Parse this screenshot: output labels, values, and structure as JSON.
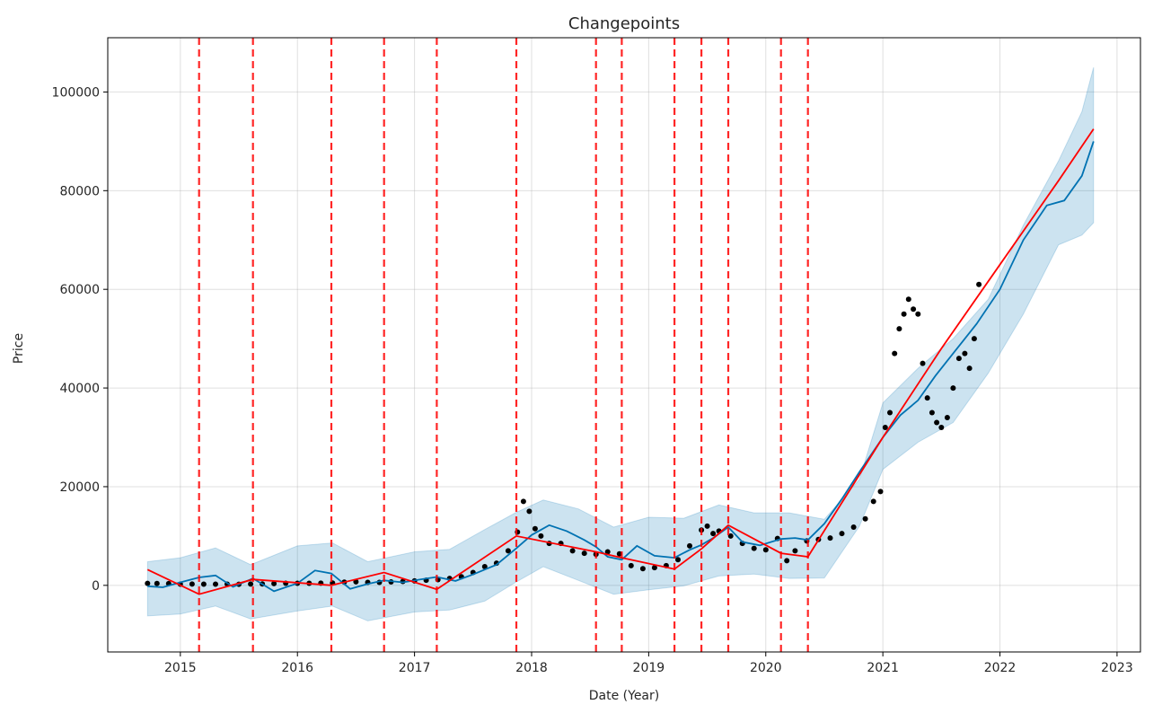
{
  "chart_data": {
    "type": "line",
    "title": "Changepoints",
    "xlabel": "Date (Year)",
    "ylabel": "Price",
    "xlim": [
      2014.38,
      2023.2
    ],
    "ylim": [
      -13500,
      111000
    ],
    "x_ticks": [
      2015,
      2016,
      2017,
      2018,
      2019,
      2020,
      2021,
      2022,
      2023
    ],
    "x_tick_labels": [
      "2015",
      "2016",
      "2017",
      "2018",
      "2019",
      "2020",
      "2021",
      "2022",
      "2023"
    ],
    "y_ticks": [
      0,
      20000,
      40000,
      60000,
      80000,
      100000
    ],
    "y_tick_labels": [
      "0",
      "20000",
      "40000",
      "60000",
      "80000",
      "100000"
    ],
    "grid": true,
    "colors": {
      "observed": "#000000",
      "forecast": "#0072B2",
      "uncertainty": "#0072B2",
      "trend": "#ff0000",
      "changepoints": "#ff0000"
    },
    "changepoints": [
      2015.16,
      2015.62,
      2016.29,
      2016.74,
      2017.19,
      2017.87,
      2018.55,
      2018.77,
      2019.22,
      2019.45,
      2019.68,
      2020.13,
      2020.36
    ],
    "trend": {
      "x": [
        2014.72,
        2015.16,
        2015.62,
        2016.29,
        2016.74,
        2017.19,
        2017.87,
        2018.55,
        2018.77,
        2019.22,
        2019.45,
        2019.68,
        2020.13,
        2020.36,
        2021.0,
        2021.5,
        2022.0,
        2022.5,
        2022.8
      ],
      "y": [
        3200,
        -1800,
        1200,
        0,
        2600,
        -800,
        10000,
        6800,
        5600,
        3300,
        7400,
        12200,
        6500,
        5800,
        30000,
        48000,
        65000,
        82000,
        92500
      ]
    },
    "forecast": {
      "x": [
        2014.72,
        2014.85,
        2015.0,
        2015.16,
        2015.3,
        2015.45,
        2015.62,
        2015.8,
        2016.0,
        2016.15,
        2016.29,
        2016.45,
        2016.6,
        2016.74,
        2016.9,
        2017.05,
        2017.19,
        2017.35,
        2017.5,
        2017.7,
        2017.87,
        2018.0,
        2018.15,
        2018.3,
        2018.45,
        2018.55,
        2018.65,
        2018.77,
        2018.9,
        2019.05,
        2019.22,
        2019.35,
        2019.45,
        2019.55,
        2019.68,
        2019.8,
        2019.95,
        2020.13,
        2020.25,
        2020.36,
        2020.5,
        2020.65,
        2020.8,
        2021.0,
        2021.15,
        2021.3,
        2021.45,
        2021.6,
        2021.8,
        2022.0,
        2022.2,
        2022.4,
        2022.55,
        2022.7,
        2022.8
      ],
      "y": [
        -200,
        -400,
        600,
        1600,
        2000,
        -300,
        1400,
        -1200,
        400,
        3000,
        2400,
        -700,
        300,
        1000,
        600,
        1200,
        1700,
        900,
        2200,
        4200,
        7500,
        10200,
        12200,
        11000,
        9200,
        7800,
        5800,
        5200,
        8000,
        6000,
        5600,
        7200,
        8200,
        9600,
        11800,
        8800,
        8100,
        9400,
        9600,
        9200,
        12500,
        17500,
        23000,
        30000,
        34500,
        37500,
        42500,
        47000,
        53000,
        60000,
        70000,
        77000,
        78000,
        83000,
        90000
      ]
    },
    "band": {
      "x": [
        2014.72,
        2015.0,
        2015.3,
        2015.6,
        2016.0,
        2016.3,
        2016.6,
        2017.0,
        2017.3,
        2017.6,
        2017.87,
        2018.1,
        2018.4,
        2018.7,
        2019.0,
        2019.3,
        2019.6,
        2019.9,
        2020.2,
        2020.5,
        2020.8,
        2021.0,
        2021.3,
        2021.6,
        2021.9,
        2022.2,
        2022.5,
        2022.7,
        2022.8
      ],
      "lower": [
        -6200,
        -5800,
        -4200,
        -6800,
        -5200,
        -4200,
        -7200,
        -5400,
        -5000,
        -3200,
        700,
        3800,
        1000,
        -1800,
        -900,
        -100,
        1900,
        2300,
        1400,
        1500,
        12000,
        23500,
        29000,
        33000,
        43000,
        55000,
        69000,
        71000,
        73500
      ],
      "upper": [
        4800,
        5600,
        7600,
        4200,
        8000,
        8600,
        4800,
        6800,
        7300,
        11300,
        14800,
        17300,
        15500,
        11800,
        13800,
        13600,
        16300,
        14700,
        14700,
        13400,
        21500,
        37000,
        44000,
        50000,
        58000,
        73000,
        86000,
        96000,
        105000
      ]
    },
    "observed": {
      "x": [
        2014.72,
        2014.8,
        2014.9,
        2015.0,
        2015.1,
        2015.2,
        2015.3,
        2015.4,
        2015.5,
        2015.6,
        2015.7,
        2015.8,
        2015.9,
        2016.0,
        2016.1,
        2016.2,
        2016.3,
        2016.4,
        2016.5,
        2016.6,
        2016.7,
        2016.8,
        2016.9,
        2017.0,
        2017.1,
        2017.2,
        2017.3,
        2017.4,
        2017.5,
        2017.6,
        2017.7,
        2017.8,
        2017.88,
        2017.93,
        2017.98,
        2018.03,
        2018.08,
        2018.15,
        2018.25,
        2018.35,
        2018.45,
        2018.55,
        2018.65,
        2018.75,
        2018.85,
        2018.95,
        2019.05,
        2019.15,
        2019.25,
        2019.35,
        2019.45,
        2019.5,
        2019.55,
        2019.6,
        2019.7,
        2019.8,
        2019.9,
        2020.0,
        2020.1,
        2020.18,
        2020.25,
        2020.35,
        2020.45,
        2020.55,
        2020.65,
        2020.75,
        2020.85,
        2020.92,
        2020.98,
        2021.02,
        2021.06,
        2021.1,
        2021.14,
        2021.18,
        2021.22,
        2021.26,
        2021.3,
        2021.34,
        2021.38,
        2021.42,
        2021.46,
        2021.5,
        2021.55,
        2021.6,
        2021.65,
        2021.7,
        2021.74,
        2021.78,
        2021.82
      ],
      "y": [
        400,
        380,
        350,
        250,
        260,
        240,
        250,
        240,
        230,
        260,
        290,
        360,
        420,
        430,
        420,
        440,
        460,
        640,
        720,
        610,
        610,
        700,
        780,
        900,
        1050,
        1150,
        1400,
        1750,
        2600,
        3800,
        4500,
        7000,
        10800,
        17000,
        15000,
        11500,
        10000,
        8500,
        8500,
        7000,
        6500,
        6300,
        6800,
        6400,
        4000,
        3400,
        3600,
        4000,
        5200,
        8000,
        11200,
        12000,
        10500,
        11000,
        10000,
        8500,
        7500,
        7200,
        9500,
        5000,
        7000,
        9000,
        9300,
        9600,
        10500,
        11800,
        13500,
        17000,
        19000,
        32000,
        35000,
        47000,
        52000,
        55000,
        58000,
        56000,
        55000,
        45000,
        38000,
        35000,
        33000,
        32000,
        34000,
        40000,
        46000,
        47000,
        44000,
        50000,
        61000
      ]
    }
  }
}
